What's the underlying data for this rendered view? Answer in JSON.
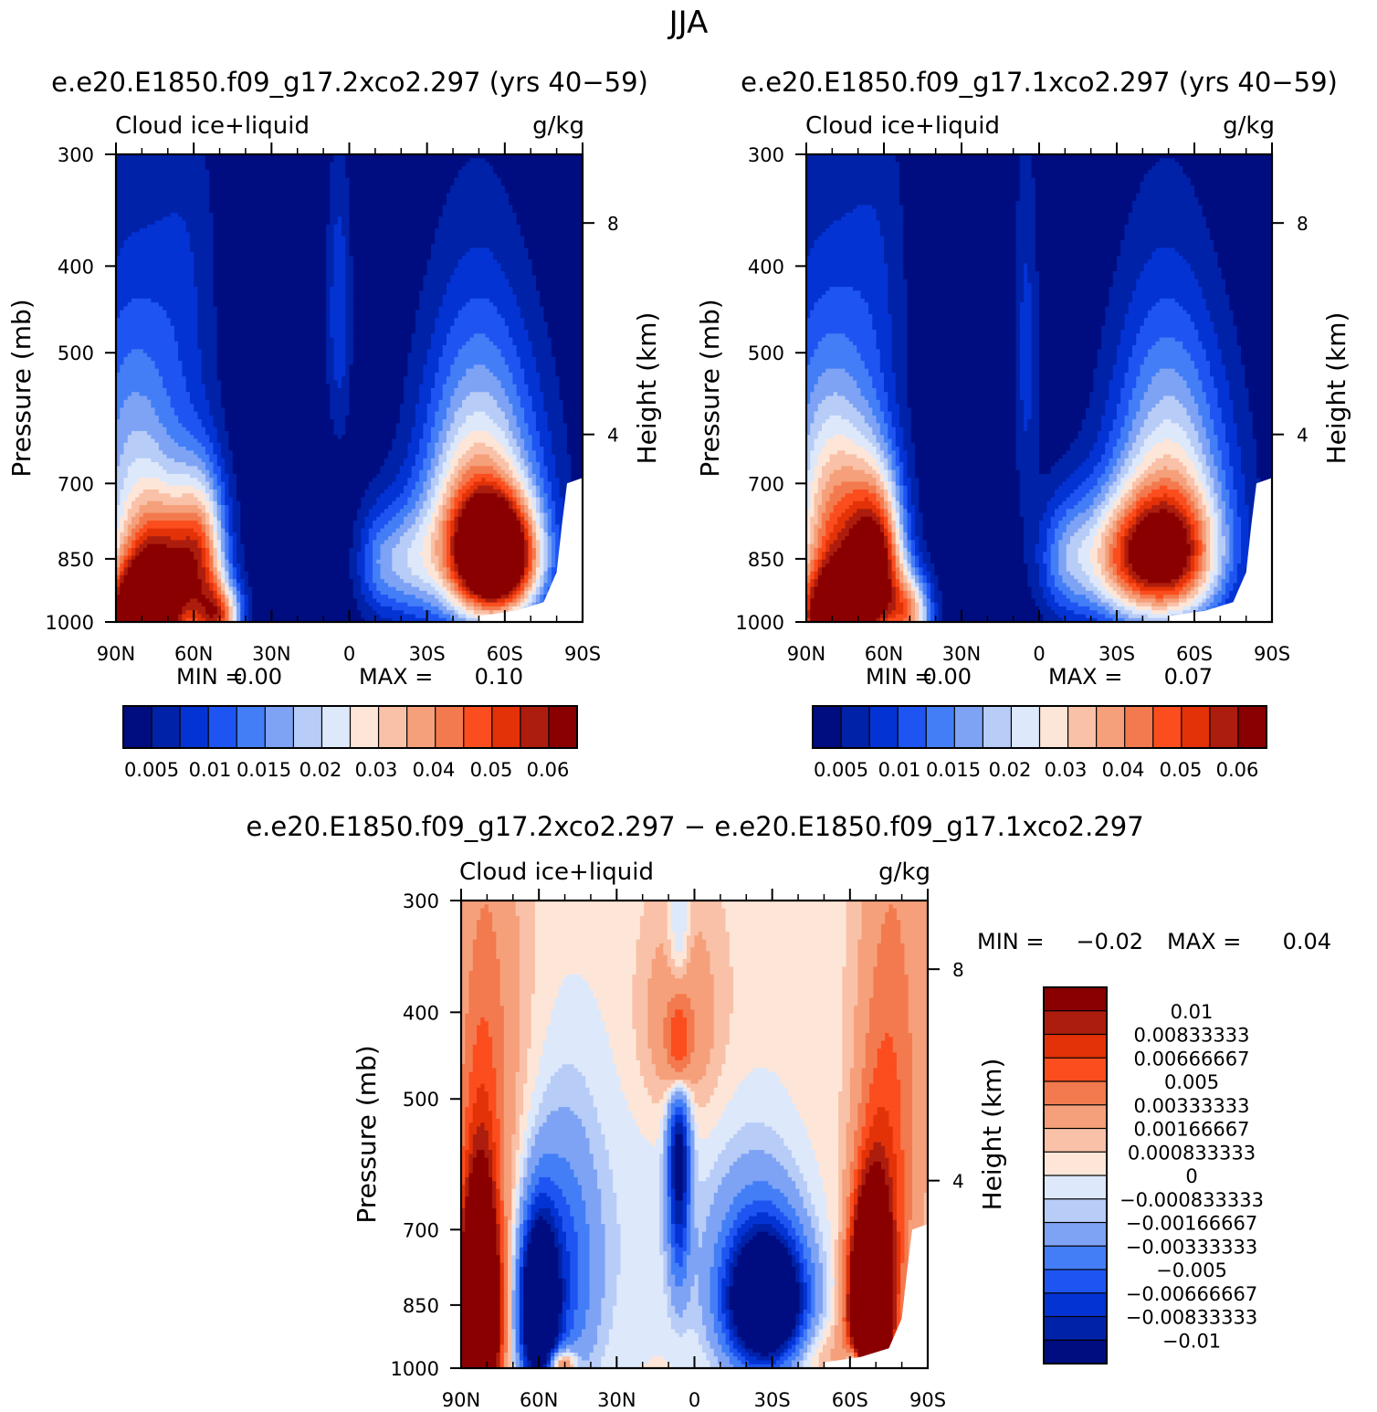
{
  "figure": {
    "season": "JJA"
  },
  "palettes": {
    "main": [
      "#000d80",
      "#0022a9",
      "#0433d4",
      "#1e55f2",
      "#437ef7",
      "#7ea3f5",
      "#b7ccf7",
      "#dde8fb",
      "#fde6d8",
      "#f9c1a8",
      "#f5a07a",
      "#f37a4e",
      "#fb4d1e",
      "#e33208",
      "#ad1d0d",
      "#8a0000"
    ],
    "diff": [
      "#000d80",
      "#0022a9",
      "#0433d4",
      "#1e55f2",
      "#437ef7",
      "#7ea3f5",
      "#b7ccf7",
      "#dde8fb",
      "#fde6d8",
      "#f9c1a8",
      "#f5a07a",
      "#f37a4e",
      "#fb4d1e",
      "#e33208",
      "#ad1d0d",
      "#8a0000"
    ]
  },
  "chart_data": [
    {
      "id": "panel1",
      "type": "heatmap",
      "title": "e.e20.E1850.f09_g17.2xco2.297 (yrs 40−59)",
      "left_label": "Cloud ice+liquid",
      "right_label": "g/kg",
      "ylabel": "Pressure (mb)",
      "y2label": "Height (km)",
      "x_ticklabels": [
        "90N",
        "60N",
        "30N",
        "0",
        "30S",
        "60S",
        "90S"
      ],
      "y_ticks": [
        300,
        400,
        500,
        700,
        850,
        1000
      ],
      "y_ticklabels": [
        "300",
        "400",
        "500",
        "700",
        "850",
        "1000"
      ],
      "y2_ticklabels": [
        "8",
        "4"
      ],
      "min_label": "MIN =",
      "min_value": "0.00",
      "max_label": "MAX =",
      "max_value": "0.10",
      "levels": [
        0.005,
        0.01,
        0.015,
        0.02,
        0.025,
        0.03,
        0.035,
        0.04,
        0.045,
        0.05,
        0.055,
        0.06,
        0.065,
        0.07,
        0.075
      ],
      "colorbar_labels": [
        "0.005",
        "0.01",
        "0.015",
        "0.02",
        "0.03",
        "0.04",
        "0.05",
        "0.06"
      ],
      "features": [
        {
          "lat": 80,
          "p": 1000,
          "amp": 0.1,
          "slat": 10,
          "sp": 90
        },
        {
          "lat": 72,
          "p": 860,
          "amp": 0.045,
          "slat": 11,
          "sp": 110
        },
        {
          "lat": 57,
          "p": 850,
          "amp": 0.045,
          "slat": 7,
          "sp": 130
        },
        {
          "lat": 50,
          "p": 990,
          "amp": 0.05,
          "slat": 6,
          "sp": 60
        },
        {
          "lat": 83,
          "p": 700,
          "amp": 0.03,
          "slat": 14,
          "sp": 220
        },
        {
          "lat": -58,
          "p": 850,
          "amp": 0.085,
          "slat": 11,
          "sp": 90
        },
        {
          "lat": -45,
          "p": 830,
          "amp": 0.03,
          "slat": 12,
          "sp": 120
        },
        {
          "lat": -22,
          "p": 860,
          "amp": 0.024,
          "slat": 9,
          "sp": 90
        },
        {
          "lat": -10,
          "p": 860,
          "amp": 0.012,
          "slat": 6,
          "sp": 90
        },
        {
          "lat": -53,
          "p": 700,
          "amp": 0.025,
          "slat": 17,
          "sp": 170
        },
        {
          "lat": 4,
          "p": 450,
          "amp": 0.014,
          "slat": 3.5,
          "sp": 120
        },
        {
          "lat": 62,
          "p": 400,
          "amp": 0.007,
          "slat": 9,
          "sp": 140
        },
        {
          "lat": -48,
          "p": 620,
          "amp": 0.012,
          "slat": 14,
          "sp": 200
        }
      ]
    },
    {
      "id": "panel2",
      "type": "heatmap",
      "title": "e.e20.E1850.f09_g17.1xco2.297 (yrs 40−59)",
      "left_label": "Cloud ice+liquid",
      "right_label": "g/kg",
      "ylabel": "Pressure (mb)",
      "y2label": "Height (km)",
      "x_ticklabels": [
        "90N",
        "60N",
        "30N",
        "0",
        "30S",
        "60S",
        "90S"
      ],
      "y_ticks": [
        300,
        400,
        500,
        700,
        850,
        1000
      ],
      "y_ticklabels": [
        "300",
        "400",
        "500",
        "700",
        "850",
        "1000"
      ],
      "y2_ticklabels": [
        "8",
        "4"
      ],
      "min_label": "MIN =",
      "min_value": "0.00",
      "max_label": "MAX =",
      "max_value": "0.07",
      "levels": [
        0.005,
        0.01,
        0.015,
        0.02,
        0.025,
        0.03,
        0.035,
        0.04,
        0.045,
        0.05,
        0.055,
        0.06,
        0.065,
        0.07,
        0.075
      ],
      "colorbar_labels": [
        "0.005",
        "0.01",
        "0.015",
        "0.02",
        "0.03",
        "0.04",
        "0.05",
        "0.06"
      ],
      "features": [
        {
          "lat": 80,
          "p": 1000,
          "amp": 0.08,
          "slat": 10,
          "sp": 90
        },
        {
          "lat": 62,
          "p": 870,
          "amp": 0.06,
          "slat": 7,
          "sp": 130
        },
        {
          "lat": 75,
          "p": 820,
          "amp": 0.035,
          "slat": 11,
          "sp": 140
        },
        {
          "lat": 50,
          "p": 980,
          "amp": 0.045,
          "slat": 6,
          "sp": 70
        },
        {
          "lat": 82,
          "p": 700,
          "amp": 0.03,
          "slat": 14,
          "sp": 220
        },
        {
          "lat": -50,
          "p": 850,
          "amp": 0.06,
          "slat": 14,
          "sp": 100
        },
        {
          "lat": -30,
          "p": 850,
          "amp": 0.03,
          "slat": 12,
          "sp": 100
        },
        {
          "lat": -10,
          "p": 850,
          "amp": 0.02,
          "slat": 8,
          "sp": 100
        },
        {
          "lat": -52,
          "p": 700,
          "amp": 0.025,
          "slat": 17,
          "sp": 170
        },
        {
          "lat": 5,
          "p": 500,
          "amp": 0.012,
          "slat": 3.5,
          "sp": 170
        },
        {
          "lat": 62,
          "p": 400,
          "amp": 0.007,
          "slat": 9,
          "sp": 140
        },
        {
          "lat": -48,
          "p": 620,
          "amp": 0.012,
          "slat": 14,
          "sp": 200
        }
      ]
    },
    {
      "id": "panel3",
      "type": "heatmap",
      "title": "e.e20.E1850.f09_g17.2xco2.297 − e.e20.E1850.f09_g17.1xco2.297",
      "left_label": "Cloud ice+liquid",
      "right_label": "g/kg",
      "ylabel": "Pressure (mb)",
      "y2label": "Height (km)",
      "x_ticklabels": [
        "90N",
        "60N",
        "30N",
        "0",
        "30S",
        "60S",
        "90S"
      ],
      "y_ticks": [
        300,
        400,
        500,
        700,
        850,
        1000
      ],
      "y_ticklabels": [
        "300",
        "400",
        "500",
        "700",
        "850",
        "1000"
      ],
      "y2_ticklabels": [
        "8",
        "4"
      ],
      "min_label": "MIN =",
      "min_value": "−0.02",
      "max_label": "MAX =",
      "max_value": "0.04",
      "base": 0.0005,
      "levels": [
        -0.01,
        -0.00833333,
        -0.00666667,
        -0.005,
        -0.00333333,
        -0.00166667,
        -0.000833333,
        0,
        0.000833333,
        0.00166667,
        0.00333333,
        0.005,
        0.00666667,
        0.00833333,
        0.01
      ],
      "colorbar_labels": [
        "0.01",
        "0.00833333",
        "0.00666667",
        "0.005",
        "0.00333333",
        "0.00166667",
        "0.000833333",
        "0",
        "−0.000833333",
        "−0.00166667",
        "−0.00333333",
        "−0.005",
        "−0.00666667",
        "−0.00833333",
        "−0.01"
      ],
      "features": [
        {
          "lat": 83,
          "p": 880,
          "amp": 0.03,
          "slat": 5,
          "sp": 160
        },
        {
          "lat": 82,
          "p": 620,
          "amp": 0.004,
          "slat": 6,
          "sp": 200
        },
        {
          "lat": 78,
          "p": 400,
          "amp": 0.002,
          "slat": 10,
          "sp": 180
        },
        {
          "lat": 60,
          "p": 860,
          "amp": -0.02,
          "slat": 5,
          "sp": 130
        },
        {
          "lat": 50,
          "p": 780,
          "amp": -0.006,
          "slat": 9,
          "sp": 180
        },
        {
          "lat": 52,
          "p": 990,
          "amp": 0.008,
          "slat": 4,
          "sp": 30
        },
        {
          "lat": 6,
          "p": 560,
          "amp": -0.012,
          "slat": 3,
          "sp": 150
        },
        {
          "lat": 6,
          "p": 440,
          "amp": 0.012,
          "slat": 3,
          "sp": 50
        },
        {
          "lat": 6,
          "p": 410,
          "amp": 0.003,
          "slat": 11,
          "sp": 80
        },
        {
          "lat": -28,
          "p": 850,
          "amp": -0.02,
          "slat": 10,
          "sp": 100
        },
        {
          "lat": -22,
          "p": 760,
          "amp": -0.004,
          "slat": 14,
          "sp": 150
        },
        {
          "lat": -42,
          "p": 960,
          "amp": 0.002,
          "slat": 14,
          "sp": 60
        },
        {
          "lat": -68,
          "p": 850,
          "amp": 0.035,
          "slat": 5,
          "sp": 130
        },
        {
          "lat": -73,
          "p": 640,
          "amp": 0.005,
          "slat": 7,
          "sp": 200
        },
        {
          "lat": -62,
          "p": 990,
          "amp": -0.01,
          "slat": 2.5,
          "sp": 35
        },
        {
          "lat": -80,
          "p": 400,
          "amp": 0.002,
          "slat": 10,
          "sp": 250
        },
        {
          "lat": 25,
          "p": 700,
          "amp": -0.001,
          "slat": 15,
          "sp": 250
        }
      ]
    }
  ]
}
